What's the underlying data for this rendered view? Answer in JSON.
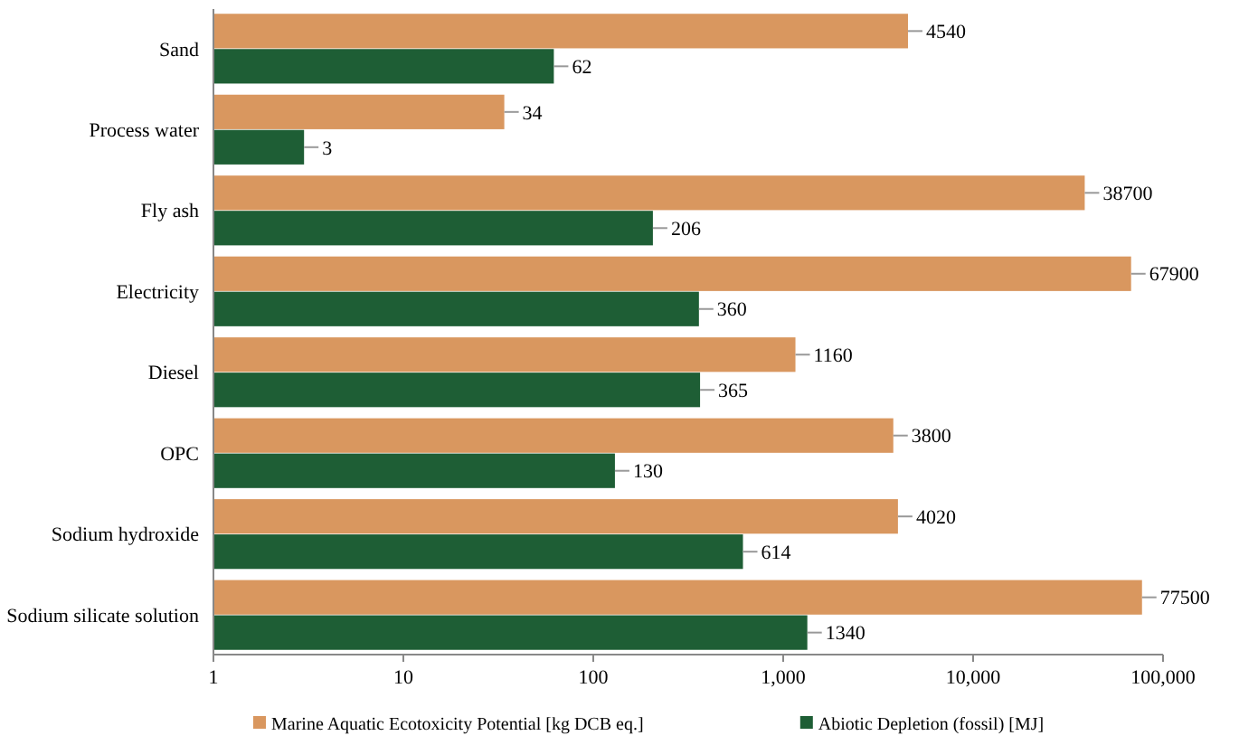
{
  "chart_data": {
    "type": "bar",
    "orientation": "horizontal",
    "log": "x",
    "categories": [
      "Sand",
      "Process water",
      "Fly ash",
      "Electricity",
      "Diesel",
      "OPC",
      "Sodium hydroxide",
      "Sodium silicate solution"
    ],
    "series": [
      {
        "name": "Marine Aquatic Ecotoxicity Potential [kg DCB eq.]",
        "color": "#d9975f",
        "values": [
          4540,
          34,
          38700,
          67900,
          1160,
          3800,
          4020,
          77500
        ]
      },
      {
        "name": "Abiotic Depletion (fossil) [MJ]",
        "color": "#1e5e35",
        "values": [
          62,
          3,
          206,
          360,
          365,
          130,
          614,
          1340
        ]
      }
    ],
    "xlim": [
      1,
      100000
    ],
    "xticks": [
      1,
      10,
      100,
      {
        "value": 1000,
        "label": "1,000"
      },
      {
        "value": 10000,
        "label": "10,000"
      },
      {
        "value": 100000,
        "label": "100,000"
      }
    ],
    "data_labels": true,
    "grid": false,
    "legend": "bottom"
  }
}
